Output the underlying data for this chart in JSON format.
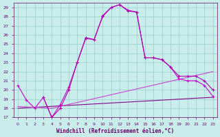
{
  "xlabel": "Windchill (Refroidissement éolien,°C)",
  "xlim": [
    -0.5,
    23.5
  ],
  "ylim": [
    17,
    29.5
  ],
  "yticks": [
    17,
    18,
    19,
    20,
    21,
    22,
    23,
    24,
    25,
    26,
    27,
    28,
    29
  ],
  "xticks": [
    0,
    1,
    2,
    3,
    4,
    5,
    6,
    7,
    8,
    9,
    10,
    11,
    12,
    13,
    14,
    15,
    16,
    17,
    18,
    19,
    20,
    21,
    22,
    23
  ],
  "bg_color": "#c8edea",
  "grid_color": "#99cccc",
  "line1": {
    "x": [
      0,
      1,
      2,
      3,
      4,
      5,
      6,
      7,
      8,
      9,
      10,
      11,
      12,
      13,
      14,
      15,
      16,
      17,
      18,
      19,
      20,
      21,
      22,
      23
    ],
    "y": [
      20.5,
      18.9,
      18.0,
      19.2,
      17.0,
      18.4,
      20.3,
      23.0,
      25.6,
      25.5,
      28.0,
      29.0,
      29.3,
      28.7,
      28.5,
      23.5,
      23.5,
      23.3,
      22.5,
      21.2,
      21.0,
      21.0,
      20.5,
      19.3
    ],
    "color": "#cc00cc",
    "marker": "+"
  },
  "line2": {
    "x": [
      3,
      4,
      5,
      6,
      7,
      8,
      9,
      10,
      11,
      12,
      13,
      14,
      15,
      16,
      17,
      18,
      19,
      20,
      21,
      22,
      23
    ],
    "y": [
      19.2,
      17.0,
      18.0,
      20.0,
      23.0,
      25.7,
      25.5,
      28.1,
      29.0,
      29.3,
      28.6,
      28.5,
      23.5,
      23.5,
      23.3,
      22.5,
      21.5,
      21.5,
      21.5,
      21.0,
      20.0
    ],
    "color": "#aa00aa",
    "marker": "+"
  },
  "line3": {
    "x": [
      0,
      23
    ],
    "y": [
      18.0,
      19.2
    ],
    "color": "#880088",
    "marker": null
  },
  "line4": {
    "x": [
      0,
      4,
      23
    ],
    "y": [
      18.2,
      18.0,
      22.0
    ],
    "color": "#cc44cc",
    "marker": null
  },
  "tick_color": "#660066",
  "tick_fontsize": 4.5,
  "xlabel_fontsize": 5.5
}
